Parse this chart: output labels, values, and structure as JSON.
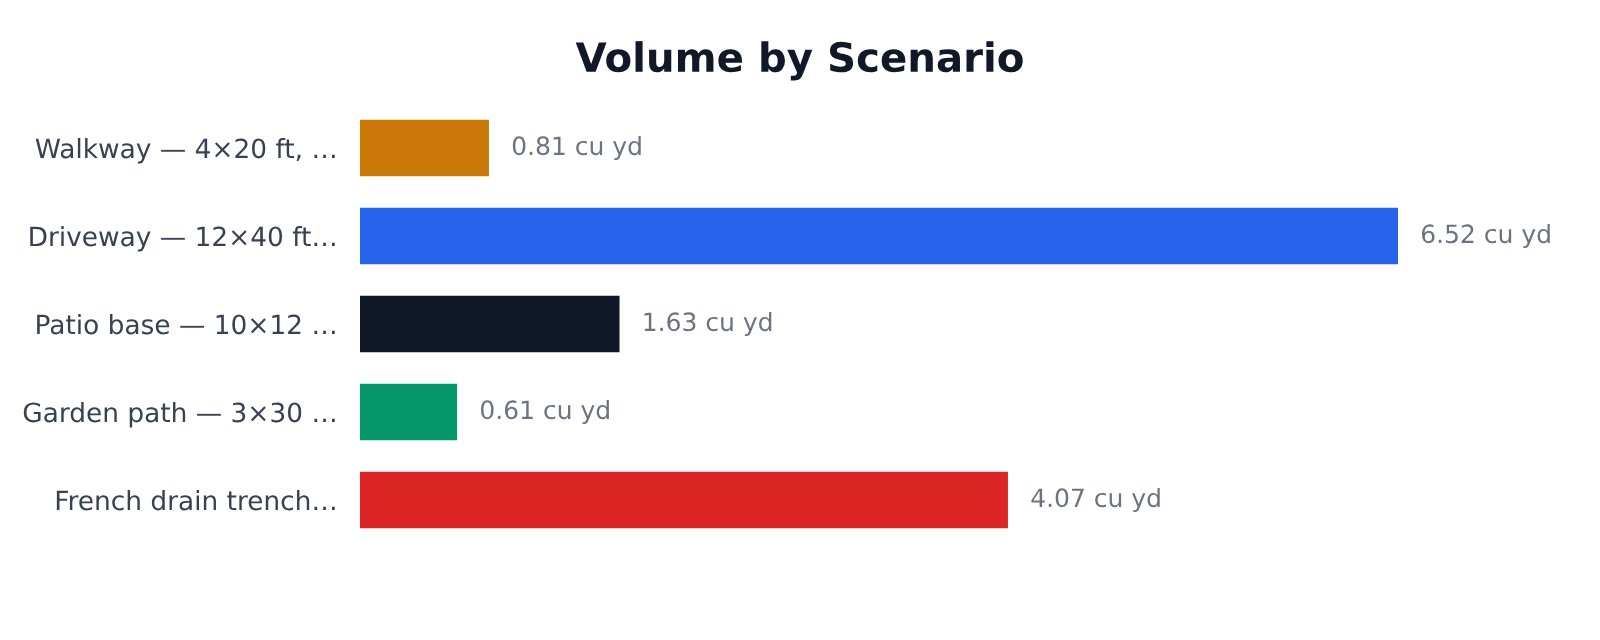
{
  "chart_data": {
    "type": "bar",
    "orientation": "horizontal",
    "title": "Volume by Scenario",
    "categories": [
      "Walkway — 4×20 ft, …",
      "Driveway — 12×40 ft…",
      "Patio base — 10×12 …",
      "Garden path — 3×30 …",
      "French drain trench…"
    ],
    "values": [
      0.81,
      6.52,
      1.63,
      0.61,
      4.07
    ],
    "colors": [
      "#c97706",
      "#2563eb",
      "#111827",
      "#059669",
      "#dc2626"
    ],
    "value_labels": [
      "0.81 cu yd",
      "6.52 cu yd",
      "1.63 cu yd",
      "0.61 cu yd",
      "4.07 cu yd"
    ],
    "grid": false,
    "legend": false
  }
}
